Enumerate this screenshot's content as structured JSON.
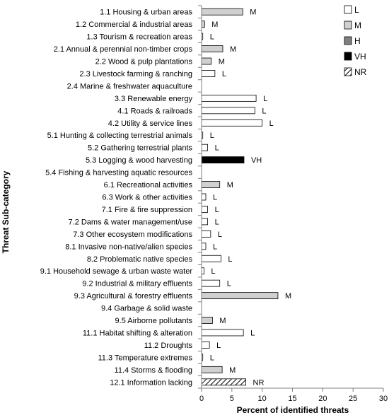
{
  "chart_data": {
    "type": "bar",
    "orientation": "horizontal",
    "xlabel": "Percent of identified threats",
    "ylabel": "Threat Sub-category",
    "xlim": [
      0,
      30
    ],
    "xticks": [
      0,
      5,
      10,
      15,
      20,
      25,
      30
    ],
    "grid": false,
    "legend_position": "top-right",
    "legend": [
      {
        "code": "L",
        "label": "L",
        "color": "#ffffff",
        "pattern": "none"
      },
      {
        "code": "M",
        "label": "M",
        "color": "#d0d0d0",
        "pattern": "none"
      },
      {
        "code": "H",
        "label": "H",
        "color": "#7f7f7f",
        "pattern": "none"
      },
      {
        "code": "VH",
        "label": "VH",
        "color": "#000000",
        "pattern": "none"
      },
      {
        "code": "NR",
        "label": "NR",
        "color": "#ffffff",
        "pattern": "hatch"
      }
    ],
    "categories": [
      "1.1 Housing & urban areas",
      "1.2 Commercial & industrial areas",
      "1.3 Tourism & recreation areas",
      "2.1 Annual & perennial non-timber crops",
      "2.2 Wood & pulp plantations",
      "2.3 Livestock farming & ranching",
      "2.4 Marine & freshwater aquaculture",
      "3.3 Renewable  energy",
      "4.1 Roads & railroads",
      "4.2 Utility & service lines",
      "5.1 Hunting & collecting terrestrial animals",
      "5.2 Gathering terrestrial plants",
      "5.3 Logging & wood harvesting",
      "5.4 Fishing & harvesting aquatic resources",
      "6.1 Recreational  activities",
      "6.3 Work & other activities",
      "7.1 Fire & fire suppression",
      "7.2 Dams & water management/use",
      "7.3 Other ecosystem modifications",
      "8.1 Invasive non-native/alien species",
      "8.2 Problematic native species",
      "9.1 Household sewage & urban waste water",
      "9.2 Industrial & military effluents",
      "9.3 Agricultural & forestry effluents",
      "9.4 Garbage & solid waste",
      "9.5 Airborne pollutants",
      "11.1 Habitat shifting & alteration",
      "11.2 Droughts",
      "11.3 Temperature  extremes",
      "11.4 Storms & flooding",
      "12.1 Information lacking"
    ],
    "values": [
      6.8,
      0.5,
      0.2,
      3.5,
      1.6,
      2.2,
      0,
      9.0,
      8.8,
      10.0,
      0.2,
      1.0,
      7.0,
      0,
      3.0,
      0.7,
      1.0,
      1.0,
      1.5,
      0.7,
      3.2,
      0.4,
      3.0,
      12.6,
      0,
      1.8,
      6.9,
      1.3,
      0.2,
      3.4,
      7.3
    ],
    "levels": [
      "M",
      "M",
      "L",
      "M",
      "M",
      "L",
      "",
      "L",
      "L",
      "L",
      "L",
      "L",
      "VH",
      "",
      "M",
      "L",
      "L",
      "L",
      "L",
      "L",
      "L",
      "L",
      "L",
      "M",
      "",
      "M",
      "L",
      "L",
      "L",
      "M",
      "NR"
    ]
  }
}
